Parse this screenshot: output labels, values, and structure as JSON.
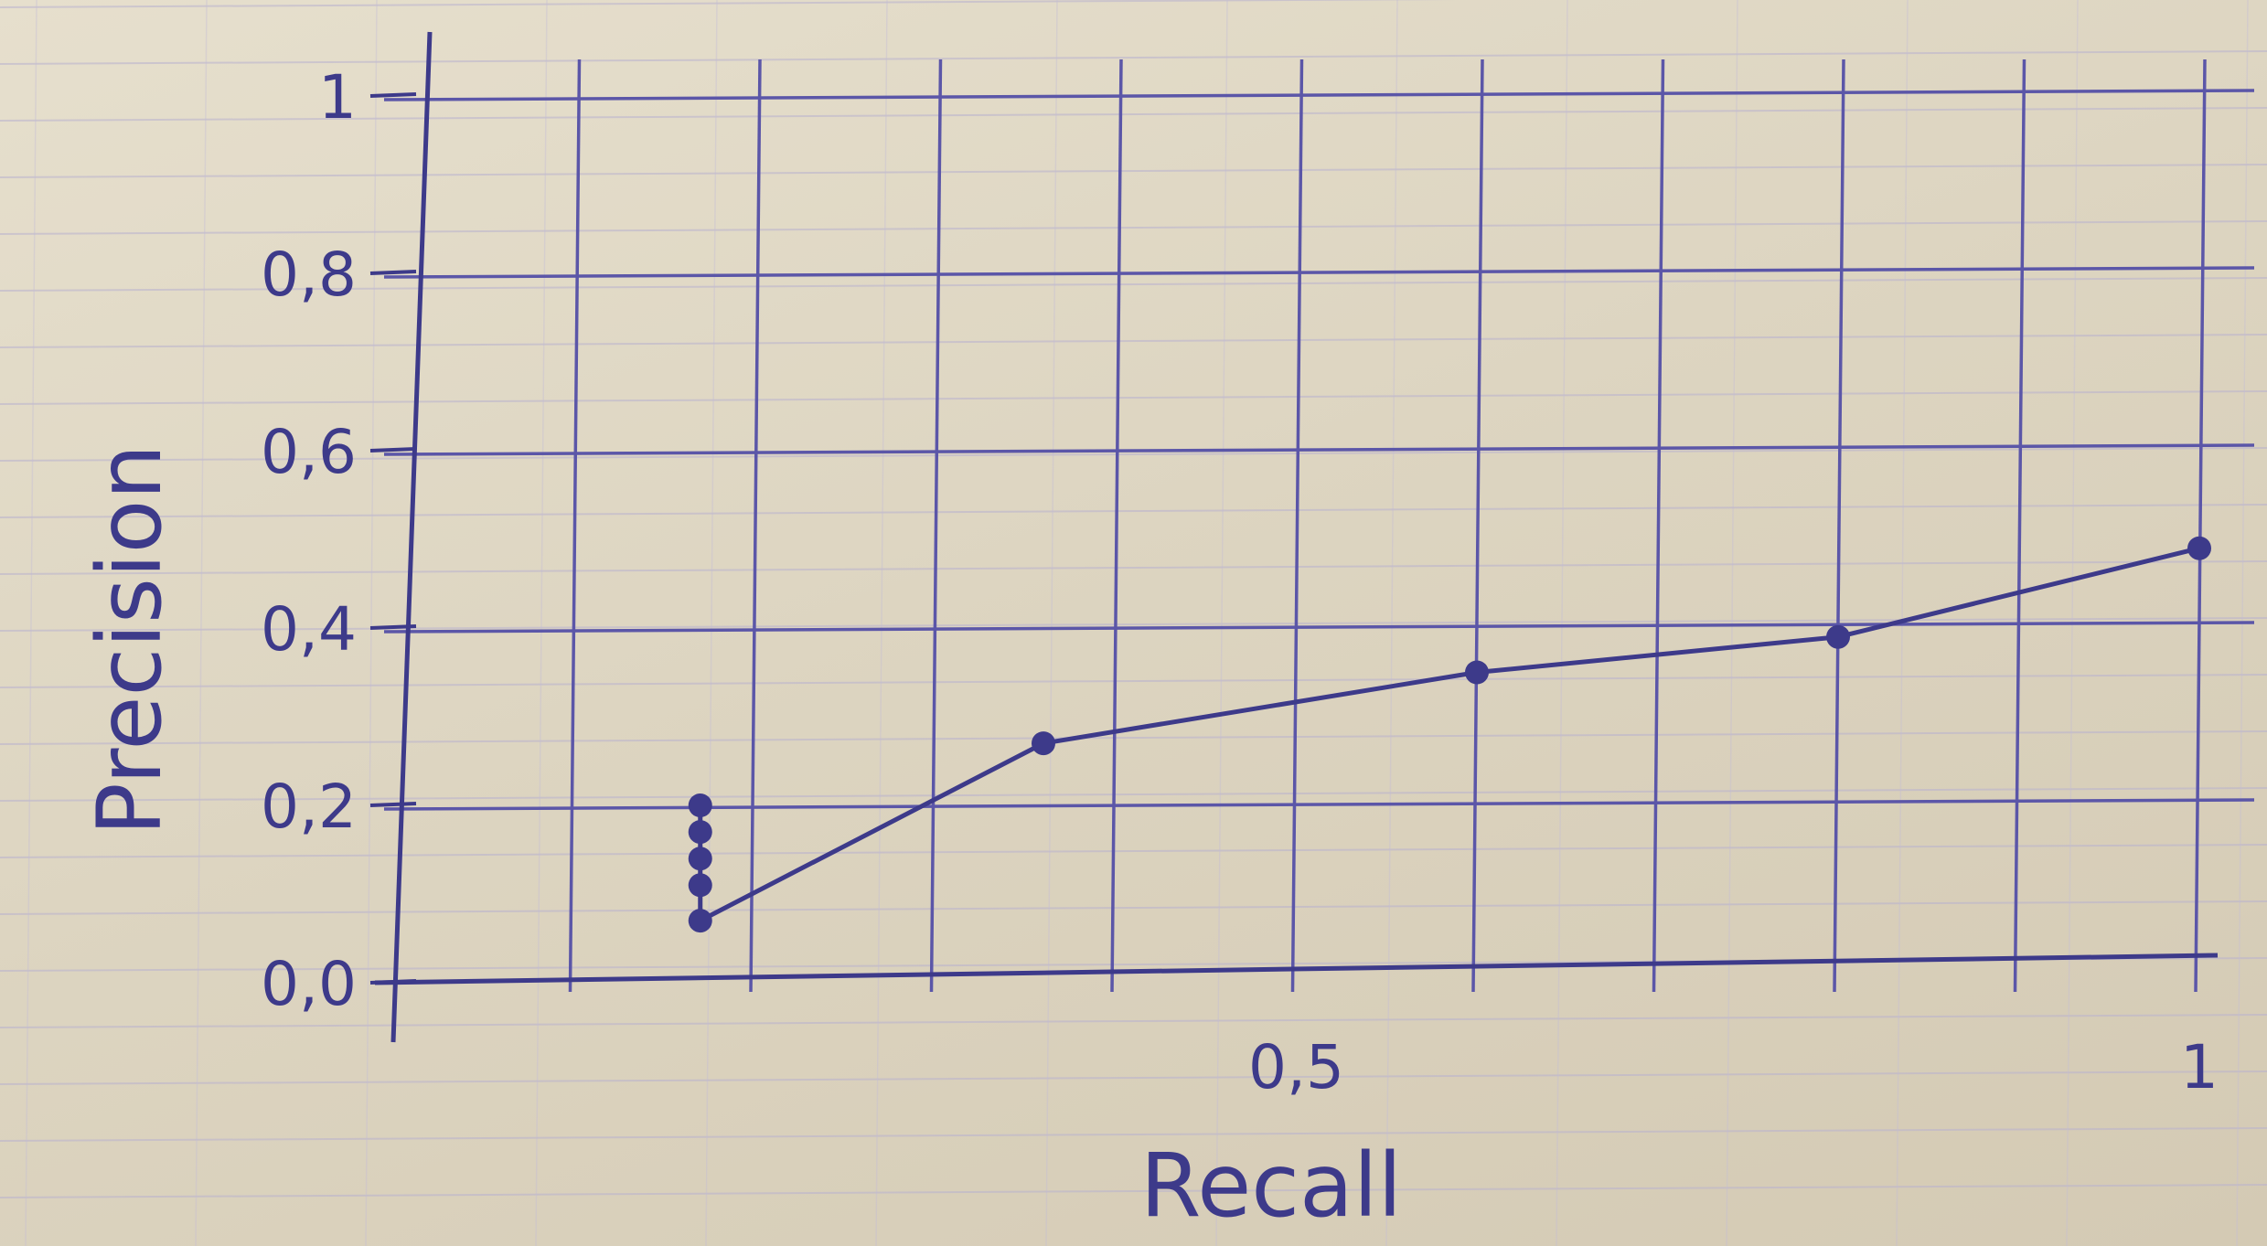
{
  "chart_data": {
    "type": "line",
    "title": "",
    "xlabel": "Recall",
    "ylabel": "Precision",
    "xlim": [
      0,
      1
    ],
    "ylim": [
      0,
      1
    ],
    "x_ticks": [
      {
        "value": 0.5,
        "label": "0,5"
      },
      {
        "value": 1,
        "label": "1"
      }
    ],
    "y_ticks": [
      {
        "value": 0,
        "label": "0,0"
      },
      {
        "value": 0.2,
        "label": "0,2"
      },
      {
        "value": 0.4,
        "label": "0,4"
      },
      {
        "value": 0.6,
        "label": "0,6"
      },
      {
        "value": 0.8,
        "label": "0,8"
      },
      {
        "value": 1,
        "label": "1"
      }
    ],
    "grid": true,
    "series": [
      {
        "x": [
          0.17,
          0.17,
          0.17,
          0.17,
          0.17,
          0.36,
          0.6,
          0.8,
          1.0
        ],
        "y": [
          0.2,
          0.17,
          0.14,
          0.11,
          0.07,
          0.27,
          0.35,
          0.39,
          0.49
        ]
      }
    ],
    "colors": {
      "ink": "#3d3a8a",
      "grid": "#5b56a8",
      "paper": "#e3dccb"
    }
  }
}
